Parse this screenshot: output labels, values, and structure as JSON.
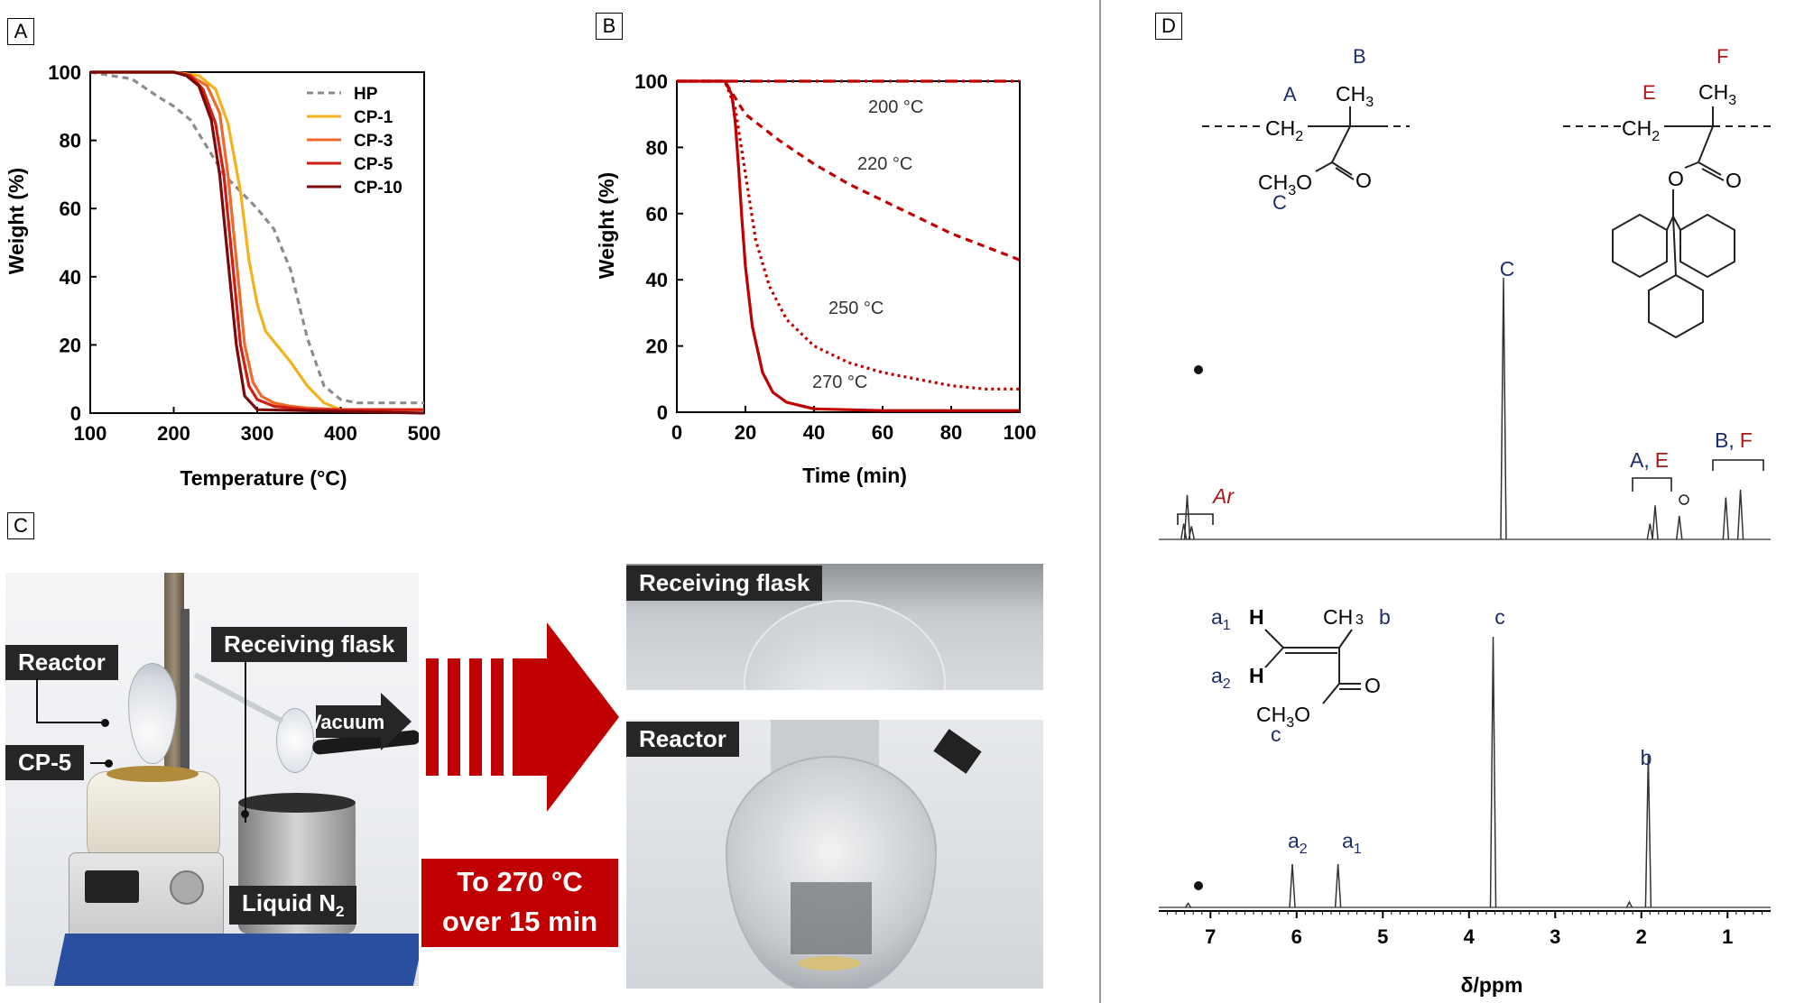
{
  "panels": {
    "a": "A",
    "b": "B",
    "c": "C",
    "d": "D"
  },
  "colors": {
    "hp": "#8c8c8c",
    "cp1": "#f3b21d",
    "cp3": "#ec6a2c",
    "cp5": "#d21d12",
    "cp10": "#7a0a0a",
    "dark_red": "#c00000",
    "navy": "#1f2c6b",
    "maroon": "#a51a1a"
  },
  "chart_data": [
    {
      "type": "line",
      "panel": "A",
      "xlabel": "Temperature (°C)",
      "ylabel": "Weight (%)",
      "xlim": [
        100,
        500
      ],
      "ylim": [
        0,
        100
      ],
      "xticks": [
        "100",
        "200",
        "300",
        "400",
        "500"
      ],
      "yticks": [
        "0",
        "20",
        "40",
        "60",
        "80",
        "100"
      ],
      "legend_position": "top-right",
      "series": [
        {
          "name": "HP",
          "style": "dashed",
          "x": [
            100,
            150,
            180,
            200,
            220,
            240,
            260,
            280,
            300,
            320,
            340,
            360,
            380,
            400,
            420,
            500
          ],
          "y": [
            100,
            98,
            93,
            90,
            86,
            78,
            70,
            65,
            60,
            54,
            42,
            22,
            8,
            4,
            3,
            3
          ]
        },
        {
          "name": "CP-1",
          "style": "solid",
          "x": [
            100,
            200,
            230,
            250,
            265,
            280,
            290,
            300,
            310,
            320,
            340,
            360,
            380,
            400,
            500
          ],
          "y": [
            100,
            100,
            99,
            95,
            85,
            65,
            45,
            32,
            24,
            21,
            15,
            8,
            3,
            1,
            1
          ]
        },
        {
          "name": "CP-3",
          "style": "solid",
          "x": [
            100,
            200,
            220,
            240,
            255,
            265,
            275,
            285,
            295,
            305,
            320,
            340,
            360,
            400,
            500
          ],
          "y": [
            100,
            100,
            99,
            96,
            88,
            70,
            45,
            20,
            9,
            5,
            3,
            2,
            1.5,
            1,
            1
          ]
        },
        {
          "name": "CP-5",
          "style": "solid",
          "x": [
            100,
            200,
            220,
            235,
            250,
            260,
            270,
            280,
            290,
            300,
            320,
            360,
            500
          ],
          "y": [
            100,
            100,
            99,
            95,
            85,
            70,
            45,
            20,
            8,
            4,
            2,
            1,
            1
          ]
        },
        {
          "name": "CP-10",
          "style": "solid",
          "x": [
            100,
            200,
            215,
            230,
            245,
            255,
            265,
            275,
            285,
            300,
            500
          ],
          "y": [
            100,
            100,
            99,
            96,
            86,
            70,
            45,
            20,
            5,
            1,
            0
          ]
        }
      ]
    },
    {
      "type": "line",
      "panel": "B",
      "xlabel": "Time (min)",
      "ylabel": "Weight (%)",
      "xlim": [
        0,
        100
      ],
      "ylim": [
        0,
        100
      ],
      "xticks": [
        "0",
        "20",
        "40",
        "60",
        "80",
        "100"
      ],
      "yticks": [
        "0",
        "20",
        "40",
        "60",
        "80",
        "100"
      ],
      "series": [
        {
          "name": "200 °C",
          "style": "dashdot",
          "x": [
            0,
            20,
            50,
            100
          ],
          "y": [
            100,
            100,
            100,
            100
          ]
        },
        {
          "name": "220 °C",
          "style": "dashed",
          "x": [
            0,
            14,
            20,
            30,
            40,
            50,
            60,
            70,
            80,
            90,
            100
          ],
          "y": [
            100,
            100,
            90,
            82,
            75,
            69,
            64,
            59,
            54,
            50,
            46
          ]
        },
        {
          "name": "250 °C",
          "style": "dotted",
          "x": [
            0,
            14,
            17,
            20,
            23,
            27,
            32,
            40,
            50,
            60,
            70,
            80,
            90,
            100
          ],
          "y": [
            100,
            100,
            92,
            72,
            52,
            38,
            28,
            20,
            15,
            12,
            10,
            8,
            7,
            7
          ]
        },
        {
          "name": "270 °C",
          "style": "solid",
          "x": [
            0,
            14,
            16,
            17,
            18,
            19,
            20,
            22,
            25,
            28,
            32,
            40,
            60,
            100
          ],
          "y": [
            100,
            100,
            96,
            88,
            74,
            58,
            44,
            26,
            12,
            6,
            3,
            1,
            0.5,
            0.5
          ]
        }
      ]
    },
    {
      "type": "line",
      "panel": "D",
      "xlabel": "δ/ppm",
      "xlim": [
        7.6,
        0.5
      ],
      "xticks": [
        "7",
        "6",
        "5",
        "4",
        "3",
        "2",
        "1"
      ],
      "series": [
        {
          "name": "polymer",
          "peaks": [
            {
              "ppm": 7.31,
              "h": 0.06
            },
            {
              "ppm": 7.27,
              "h": 0.17
            },
            {
              "ppm": 7.22,
              "h": 0.05
            },
            {
              "ppm": 3.6,
              "h": 1.0
            },
            {
              "ppm": 1.9,
              "h": 0.06
            },
            {
              "ppm": 1.84,
              "h": 0.13
            },
            {
              "ppm": 1.56,
              "h": 0.09
            },
            {
              "ppm": 1.02,
              "h": 0.16
            },
            {
              "ppm": 0.85,
              "h": 0.19
            }
          ]
        },
        {
          "name": "monomer",
          "peaks": [
            {
              "ppm": 7.26,
              "h": 0.015
            },
            {
              "ppm": 6.05,
              "h": 0.16
            },
            {
              "ppm": 5.52,
              "h": 0.16
            },
            {
              "ppm": 3.72,
              "h": 1.0
            },
            {
              "ppm": 2.14,
              "h": 0.02
            },
            {
              "ppm": 1.92,
              "h": 0.56
            }
          ]
        }
      ]
    }
  ],
  "panel_c": {
    "labels": {
      "reactor": "Reactor",
      "cp5": "CP-5",
      "receiving": "Receiving flask",
      "vacuum": "Vacuum",
      "liquid_n2": "Liquid N",
      "n2_sub": "2",
      "cond1": "To 270 °C",
      "cond2": "over 15 min",
      "inset_top": "Receiving flask",
      "inset_bottom": "Reactor"
    }
  },
  "panel_d": {
    "struct_top_left": {
      "A": "A",
      "B": "B",
      "C": "C",
      "CH3": "CH",
      "three": "3",
      "CH2": "CH",
      "two": "2",
      "OMe": "CH",
      "O": "O",
      "O2": "O"
    },
    "struct_top_right": {
      "E": "E",
      "F": "F",
      "CH3": "CH",
      "three": "3",
      "CH2": "CH",
      "two": "2",
      "O": "O",
      "O2": "O"
    },
    "assign": {
      "C": "C",
      "Ar": "Ar",
      "AE_A": "A",
      "AE_E": "E",
      "BF_B": "B",
      "BF_F": "F",
      "c": "c",
      "b": "b",
      "a1": "a",
      "a2": "a",
      "sub1": "1",
      "sub2": "2",
      "comma": ","
    },
    "monomer": {
      "a1": "a",
      "a2": "a",
      "H": "H",
      "CH3": "CH",
      "three": "3",
      "b": "b",
      "O": "O",
      "OMe": "CH",
      "c": "c"
    }
  }
}
